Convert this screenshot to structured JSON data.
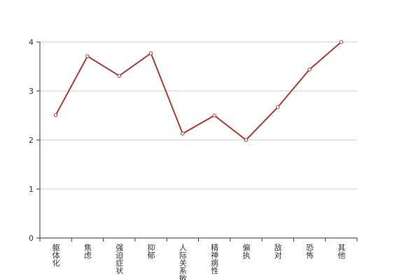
{
  "chart_data": {
    "type": "line",
    "categories": [
      "躯体化",
      "焦虑",
      "强迫症状",
      "抑郁",
      "人际关系敏感",
      "精神病性",
      "偏执",
      "敌对",
      "恐怖",
      "其他"
    ],
    "series": [
      {
        "color": "#b83535",
        "values": [
          2.51,
          3.71,
          3.31,
          3.77,
          2.13,
          2.5,
          2.0,
          2.67,
          3.44,
          4.0
        ]
      }
    ],
    "ylim": [
      0,
      4
    ],
    "yticks": [
      0,
      1,
      2,
      3,
      4
    ],
    "grid": true
  }
}
